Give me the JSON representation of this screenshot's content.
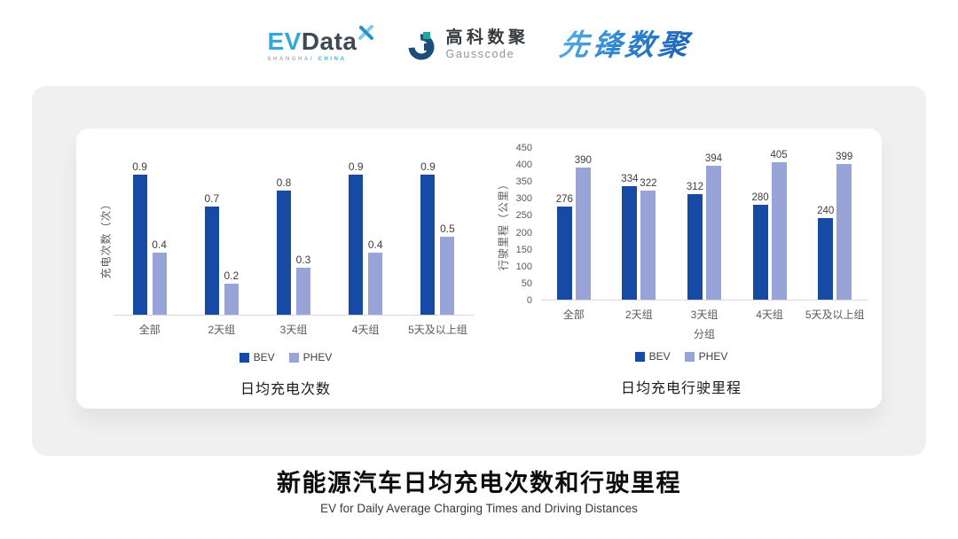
{
  "header": {
    "evdata_logo": {
      "ev": "EV",
      "data": "Data",
      "sub_left": "SHANGHAI",
      "sub_right": "CHINA"
    },
    "gausscode_logo": {
      "cn": "高科数聚",
      "en": "Gausscode"
    },
    "pioneer_logo": {
      "text": "先锋数聚"
    }
  },
  "chart_data": [
    {
      "type": "bar",
      "title": "日均充电次数",
      "ylabel": "充电次数（次）",
      "xlabel": "",
      "categories": [
        "全部",
        "2天组",
        "3天组",
        "4天组",
        "5天及以上组"
      ],
      "series": [
        {
          "name": "BEV",
          "color": "#164aa5",
          "values": [
            0.9,
            0.7,
            0.8,
            0.9,
            0.9
          ]
        },
        {
          "name": "PHEV",
          "color": "#98a3d7",
          "values": [
            0.4,
            0.2,
            0.3,
            0.4,
            0.5
          ]
        }
      ],
      "ylim": [
        0,
        1
      ],
      "yticks": [],
      "grid": false,
      "legend": [
        "BEV",
        "PHEV"
      ],
      "legend_position": "bottom"
    },
    {
      "type": "bar",
      "title": "日均充电行驶里程",
      "ylabel": "行驶里程（公里）",
      "xlabel": "分组",
      "categories": [
        "全部",
        "2天组",
        "3天组",
        "4天组",
        "5天及以上组"
      ],
      "series": [
        {
          "name": "BEV",
          "color": "#164aa5",
          "values": [
            276,
            334,
            312,
            280,
            240
          ]
        },
        {
          "name": "PHEV",
          "color": "#98a3d7",
          "values": [
            390,
            322,
            394,
            405,
            399
          ]
        }
      ],
      "ylim": [
        0,
        450
      ],
      "yticks": [
        0,
        50,
        100,
        150,
        200,
        250,
        300,
        350,
        400,
        450
      ],
      "grid": false,
      "legend": [
        "BEV",
        "PHEV"
      ],
      "legend_position": "bottom"
    }
  ],
  "footer": {
    "title": "新能源汽车日均充电次数和行驶里程",
    "subtitle": "EV for Daily Average Charging Times and Driving Distances"
  },
  "colors": {
    "bev": "#164aa5",
    "phev": "#98a3d7",
    "axis_line": "#d9d9d9",
    "panel_background": "#f0f0f0",
    "evdata_blue": "#31a9de",
    "evdata_dark": "#3d4a55",
    "gausscode_blue": "#1d4e7a",
    "gausscode_teal": "#1fa8a0",
    "pioneer_blue": "#2f86cf"
  }
}
